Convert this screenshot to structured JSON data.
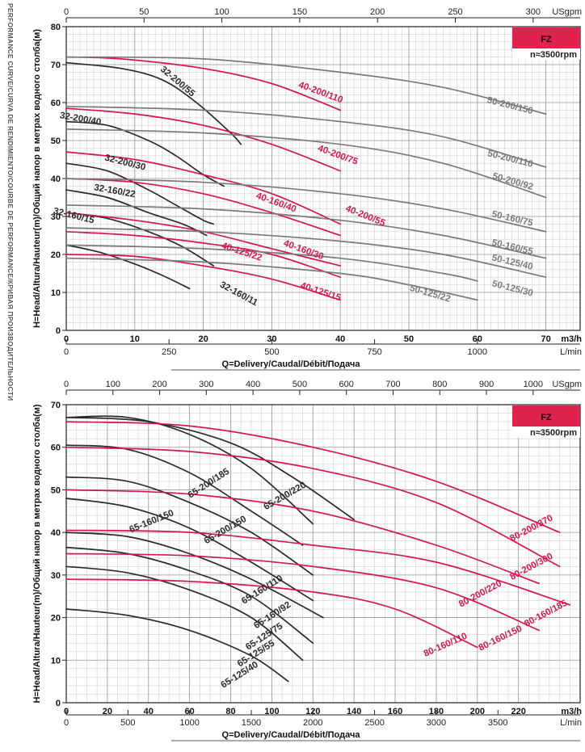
{
  "side_label": "PERFORMANCE CURVE/CURVA DE RENDIMIENTO/COURBE DE PERFORMANCE/КРИВАЯ ПРОИЗВОДИТЕЛЬНОСТИ",
  "colors": {
    "dark": "#2b2b2b",
    "red": "#d4174e",
    "gray": "#7a7a7a",
    "badge": "#e0224e"
  },
  "chart_data": [
    {
      "type": "line",
      "badge": "FZ",
      "speed_label": "n≈3500rpm",
      "ylabel": "H=Head/Altura/Hauteur(m)/Общий напор в метрах водного столба(м)",
      "xlabel": "Q=Delivery/Caudal/Débit/Подача",
      "ylim": [
        0,
        80
      ],
      "xlim": [
        0,
        75
      ],
      "y_ticks": [
        0,
        10,
        20,
        30,
        40,
        50,
        60,
        70,
        80
      ],
      "x_ticks": [
        0,
        10,
        20,
        30,
        40,
        50,
        60,
        70
      ],
      "x_unit": "m3/h",
      "usgpm_ticks": [
        0,
        50,
        100,
        150,
        200,
        250,
        300
      ],
      "usgpm_unit": "USgpm",
      "lmin_ticks": [
        0,
        250,
        500,
        750,
        1000
      ],
      "lmin_unit": "L/min",
      "series": [
        {
          "name": "32-200/55",
          "color": "dark",
          "x": [
            0,
            8,
            14,
            19,
            24,
            25.5
          ],
          "y": [
            70.5,
            69,
            66,
            60,
            52,
            49
          ]
        },
        {
          "name": "32-200/40",
          "color": "dark",
          "x": [
            0,
            6,
            12,
            16,
            20,
            23
          ],
          "y": [
            55,
            54,
            50,
            46,
            41,
            38
          ]
        },
        {
          "name": "32-200/30",
          "color": "dark",
          "x": [
            0,
            6,
            12,
            16,
            20,
            21.5
          ],
          "y": [
            44,
            42,
            37,
            33,
            29,
            28
          ]
        },
        {
          "name": "32-160/22",
          "color": "dark",
          "x": [
            0,
            6,
            12,
            17,
            20.5
          ],
          "y": [
            37,
            35,
            31,
            28,
            25
          ]
        },
        {
          "name": "32-160/15",
          "color": "dark",
          "x": [
            0,
            6,
            12,
            17,
            21.5
          ],
          "y": [
            31,
            29.5,
            26,
            22,
            17
          ]
        },
        {
          "name": "32-160/11",
          "color": "dark",
          "x": [
            0,
            5,
            10,
            14,
            18
          ],
          "y": [
            22.5,
            20.5,
            17.5,
            14.5,
            11
          ]
        },
        {
          "name": "40-200/110",
          "color": "red",
          "x": [
            0,
            8,
            20,
            30,
            40
          ],
          "y": [
            72,
            71.5,
            69,
            65,
            58
          ]
        },
        {
          "name": "40-200/75",
          "color": "red",
          "x": [
            0,
            10,
            20,
            30,
            40
          ],
          "y": [
            58.5,
            57,
            54,
            49,
            42
          ]
        },
        {
          "name": "40-200/55",
          "color": "red",
          "x": [
            0,
            10,
            20,
            30,
            40
          ],
          "y": [
            47,
            45,
            41,
            36,
            28
          ]
        },
        {
          "name": "40-160/40",
          "color": "red",
          "x": [
            0,
            10,
            20,
            30,
            40
          ],
          "y": [
            40,
            39,
            36,
            31,
            25
          ]
        },
        {
          "name": "40-160/30",
          "color": "red",
          "x": [
            0,
            10,
            20,
            30,
            40
          ],
          "y": [
            31,
            29,
            26,
            21.5,
            17
          ]
        },
        {
          "name": "40-125/22",
          "color": "red",
          "x": [
            0,
            10,
            20,
            30,
            40
          ],
          "y": [
            26,
            25,
            23,
            20,
            14
          ]
        },
        {
          "name": "40-125/15",
          "color": "red",
          "x": [
            0,
            10,
            20,
            30,
            40
          ],
          "y": [
            20,
            19.5,
            17,
            13.5,
            8
          ]
        },
        {
          "name": "50-200/150",
          "color": "gray",
          "x": [
            0,
            20,
            40,
            55,
            70
          ],
          "y": [
            72,
            71.5,
            68,
            64,
            57
          ]
        },
        {
          "name": "50-200/110",
          "color": "gray",
          "x": [
            0,
            20,
            40,
            55,
            70
          ],
          "y": [
            59,
            58,
            55,
            51,
            43
          ]
        },
        {
          "name": "50-200/92",
          "color": "gray",
          "x": [
            0,
            20,
            40,
            55,
            70
          ],
          "y": [
            53,
            52,
            49,
            44,
            35
          ]
        },
        {
          "name": "50-160/75",
          "color": "gray",
          "x": [
            0,
            20,
            40,
            55,
            70
          ],
          "y": [
            40,
            39,
            36,
            32,
            26
          ]
        },
        {
          "name": "50-160/55",
          "color": "gray",
          "x": [
            0,
            20,
            40,
            55,
            70
          ],
          "y": [
            33,
            32,
            29,
            25,
            19
          ]
        },
        {
          "name": "50-125/40",
          "color": "gray",
          "x": [
            0,
            20,
            40,
            55,
            70
          ],
          "y": [
            27,
            26,
            23.5,
            20,
            14
          ]
        },
        {
          "name": "50-125/30",
          "color": "gray",
          "x": [
            0,
            20,
            40,
            55,
            60
          ],
          "y": [
            22.5,
            21.5,
            19,
            15,
            13
          ]
        },
        {
          "name": "50-125/22",
          "color": "gray",
          "x": [
            0,
            20,
            40,
            50,
            60
          ],
          "y": [
            19,
            18,
            15,
            12,
            8
          ]
        }
      ],
      "labels": [
        {
          "text": "32-200/55",
          "x": 16,
          "y": 65,
          "rot": 40,
          "color": "dark"
        },
        {
          "text": "32-200/40",
          "x": 2,
          "y": 55,
          "rot": 10,
          "color": "dark"
        },
        {
          "text": "32-200/30",
          "x": 8.5,
          "y": 43.5,
          "rot": 14,
          "color": "dark"
        },
        {
          "text": "32-160/22",
          "x": 7,
          "y": 36,
          "rot": 10,
          "color": "dark"
        },
        {
          "text": "32-160/15",
          "x": 1,
          "y": 29.5,
          "rot": 14,
          "color": "dark"
        },
        {
          "text": "32-160/11",
          "x": 25,
          "y": 9,
          "rot": 28,
          "color": "dark"
        },
        {
          "text": "40-200/110",
          "x": 37,
          "y": 62,
          "rot": 20,
          "color": "red"
        },
        {
          "text": "40-200/75",
          "x": 39.5,
          "y": 45.5,
          "rot": 20,
          "color": "red"
        },
        {
          "text": "40-200/55",
          "x": 43.5,
          "y": 29.5,
          "rot": 22,
          "color": "red"
        },
        {
          "text": "40-160/40",
          "x": 30.5,
          "y": 33,
          "rot": 20,
          "color": "red"
        },
        {
          "text": "40-160/30",
          "x": 34.5,
          "y": 20.5,
          "rot": 20,
          "color": "red"
        },
        {
          "text": "40-125/22",
          "x": 25.5,
          "y": 20,
          "rot": 18,
          "color": "red"
        },
        {
          "text": "40-125/15",
          "x": 37,
          "y": 9.5,
          "rot": 18,
          "color": "red"
        },
        {
          "text": "50-200/150",
          "x": 68,
          "y": 57,
          "rot": 14,
          "color": "gray"
        },
        {
          "text": "50-200/110",
          "x": 68,
          "y": 43,
          "rot": 14,
          "color": "gray"
        },
        {
          "text": "50-200/92",
          "x": 68,
          "y": 37,
          "rot": 16,
          "color": "gray"
        },
        {
          "text": "50-160/75",
          "x": 68,
          "y": 27.5,
          "rot": 13,
          "color": "gray"
        },
        {
          "text": "50-160/55",
          "x": 68,
          "y": 20,
          "rot": 13,
          "color": "gray"
        },
        {
          "text": "50-125/40",
          "x": 68,
          "y": 16,
          "rot": 13,
          "color": "gray"
        },
        {
          "text": "50-125/30",
          "x": 68,
          "y": 9,
          "rot": 14,
          "color": "gray"
        },
        {
          "text": "50-125/22",
          "x": 53,
          "y": 9,
          "rot": 16,
          "color": "gray"
        }
      ]
    },
    {
      "type": "line",
      "badge": "FZ",
      "speed_label": "n≈3500rpm",
      "ylabel": "H=Head/Altura/Hauteur(m)/Общий напор в метрах водного столба(м)",
      "xlabel": "Q=Delivery/Caudal/Débit/Подача",
      "ylim": [
        0,
        70
      ],
      "xlim": [
        0,
        250
      ],
      "y_ticks": [
        0,
        10,
        20,
        30,
        40,
        50,
        60,
        70
      ],
      "x_ticks": [
        0,
        20,
        40,
        60,
        80,
        100,
        120,
        140,
        160,
        180,
        200,
        220
      ],
      "x_unit": "m3/h",
      "usgpm_ticks": [
        0,
        100,
        200,
        300,
        400,
        500,
        600,
        700,
        800,
        900,
        1000
      ],
      "usgpm_unit": "USgpm",
      "lmin_ticks": [
        0,
        500,
        1000,
        1500,
        2000,
        2500,
        3000,
        3500
      ],
      "lmin_unit": "L/min",
      "series": [
        {
          "name": "65-200/185",
          "color": "dark",
          "x": [
            0,
            30,
            60,
            90,
            120
          ],
          "y": [
            67,
            67,
            63,
            55,
            42
          ]
        },
        {
          "name": "65-200/150",
          "color": "dark",
          "x": [
            0,
            30,
            60,
            90,
            115
          ],
          "y": [
            60.5,
            59.5,
            54,
            45,
            37
          ]
        },
        {
          "name": "65-200/220",
          "color": "dark",
          "x": [
            0,
            40,
            80,
            110,
            140
          ],
          "y": [
            67,
            66,
            61,
            53,
            43
          ]
        },
        {
          "name": "65-160/150",
          "color": "dark",
          "x": [
            0,
            30,
            60,
            90,
            120
          ],
          "y": [
            53,
            52,
            47,
            40,
            30
          ]
        },
        {
          "name": "65-160/110",
          "color": "dark",
          "x": [
            0,
            30,
            60,
            90,
            120
          ],
          "y": [
            48,
            46,
            41,
            33,
            24
          ]
        },
        {
          "name": "65-160/92",
          "color": "dark",
          "x": [
            0,
            30,
            60,
            90,
            125
          ],
          "y": [
            40,
            39,
            35,
            29,
            20
          ]
        },
        {
          "name": "65-125/75",
          "color": "dark",
          "x": [
            0,
            30,
            60,
            90,
            120
          ],
          "y": [
            36.5,
            35,
            31,
            25,
            14
          ]
        },
        {
          "name": "65-125/55",
          "color": "dark",
          "x": [
            0,
            30,
            60,
            90,
            115
          ],
          "y": [
            32,
            30.5,
            26.5,
            20,
            10
          ]
        },
        {
          "name": "65-125/40",
          "color": "dark",
          "x": [
            0,
            30,
            60,
            90,
            108
          ],
          "y": [
            22,
            20.5,
            17,
            11,
            5
          ]
        },
        {
          "name": "80-200/370",
          "color": "red",
          "x": [
            0,
            60,
            120,
            180,
            240
          ],
          "y": [
            66,
            65,
            60,
            52,
            40
          ]
        },
        {
          "name": "80-200/300",
          "color": "red",
          "x": [
            0,
            60,
            120,
            180,
            240
          ],
          "y": [
            60,
            59,
            55,
            47,
            32
          ]
        },
        {
          "name": "80-200/220",
          "color": "red",
          "x": [
            0,
            60,
            120,
            180,
            230
          ],
          "y": [
            50,
            49,
            45,
            37,
            28
          ]
        },
        {
          "name": "80-160/185",
          "color": "red",
          "x": [
            0,
            60,
            120,
            180,
            245
          ],
          "y": [
            40.5,
            40,
            37,
            33,
            23
          ]
        },
        {
          "name": "80-160/150",
          "color": "red",
          "x": [
            0,
            60,
            120,
            180,
            230
          ],
          "y": [
            35,
            34.5,
            32,
            27,
            17
          ]
        },
        {
          "name": "80-160/110",
          "color": "red",
          "x": [
            0,
            60,
            120,
            160,
            200
          ],
          "y": [
            29,
            28.5,
            26,
            22,
            13
          ]
        }
      ],
      "labels": [
        {
          "text": "65-200/185",
          "x": 70,
          "y": 51,
          "rot": -33,
          "color": "dark"
        },
        {
          "text": "65-200/220",
          "x": 107,
          "y": 48,
          "rot": -30,
          "color": "dark"
        },
        {
          "text": "65-160/150",
          "x": 42,
          "y": 42,
          "rot": -22,
          "color": "dark"
        },
        {
          "text": "65-200/150",
          "x": 78,
          "y": 40,
          "rot": -30,
          "color": "dark"
        },
        {
          "text": "65-160/110",
          "x": 96,
          "y": 26,
          "rot": -32,
          "color": "dark"
        },
        {
          "text": "65-160/92",
          "x": 101,
          "y": 20,
          "rot": -33,
          "color": "dark"
        },
        {
          "text": "65-125/75",
          "x": 97,
          "y": 15,
          "rot": -33,
          "color": "dark"
        },
        {
          "text": "65-125/55",
          "x": 93,
          "y": 11,
          "rot": -32,
          "color": "dark"
        },
        {
          "text": "65-125/40",
          "x": 85,
          "y": 6,
          "rot": -32,
          "color": "dark"
        },
        {
          "text": "80-200/370",
          "x": 237,
          "y": 43,
          "rot": -28,
          "color": "red"
        },
        {
          "text": "80-200/300",
          "x": 237,
          "y": 34,
          "rot": -28,
          "color": "red"
        },
        {
          "text": "80-200/220",
          "x": 202,
          "y": 25,
          "rot": -28,
          "color": "red"
        },
        {
          "text": "80-160/185",
          "x": 244,
          "y": 23,
          "rot": -28,
          "color": "red"
        },
        {
          "text": "80-160/150",
          "x": 222,
          "y": 17,
          "rot": -26,
          "color": "red"
        },
        {
          "text": "80-160/110",
          "x": 185,
          "y": 13,
          "rot": -24,
          "color": "red"
        }
      ]
    }
  ]
}
